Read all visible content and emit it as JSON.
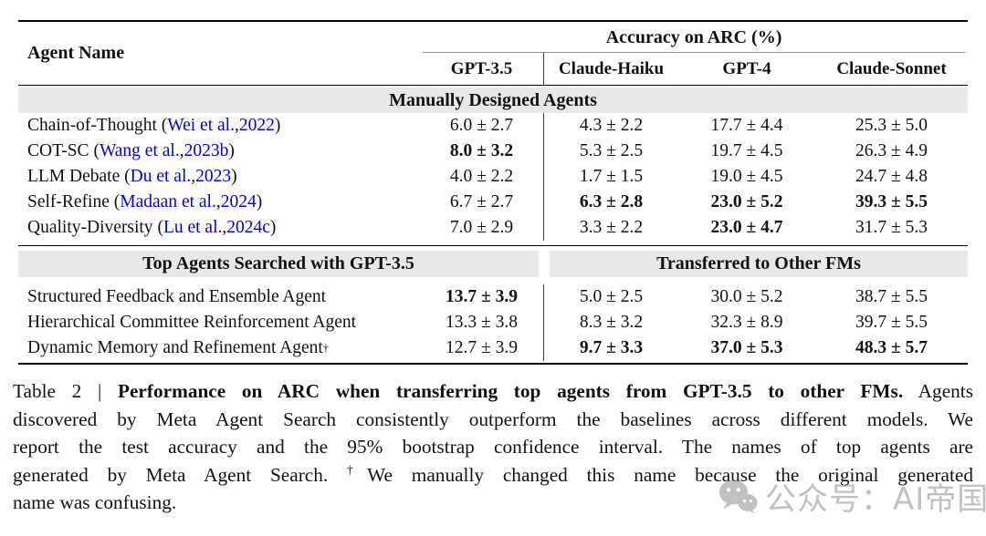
{
  "colors": {
    "link_blue": "#0000EE",
    "band_gray": "#E8E8E8",
    "rule_gray": "#8F8F8F",
    "watermark_gray": "#8F8F8F"
  },
  "table": {
    "header": {
      "agent_name": "Agent Name",
      "group_label": "Accuracy on ARC (%)",
      "models": [
        "GPT-3.5",
        "Claude-Haiku",
        "GPT-4",
        "Claude-Sonnet"
      ]
    },
    "sections": [
      {
        "bands": [
          "Manually Designed Agents"
        ],
        "rows": [
          {
            "name": "Chain-of-Thought",
            "cite": {
              "authors": "Wei et al.",
              "year": "2022"
            },
            "values": [
              "6.0 ± 2.7",
              "4.3 ± 2.2",
              "17.7 ± 4.4",
              "25.3 ± 5.0"
            ],
            "bold": [
              0,
              0,
              0,
              0
            ]
          },
          {
            "name": "COT-SC",
            "cite": {
              "authors": "Wang et al.",
              "year": "2023b"
            },
            "values": [
              "8.0 ± 3.2",
              "5.3 ± 2.5",
              "19.7 ± 4.5",
              "26.3 ± 4.9"
            ],
            "bold": [
              1,
              0,
              0,
              0
            ]
          },
          {
            "name": "LLM Debate",
            "cite": {
              "authors": "Du et al.",
              "year": "2023"
            },
            "values": [
              "4.0 ± 2.2",
              "1.7 ± 1.5",
              "19.0 ± 4.5",
              "24.7 ± 4.8"
            ],
            "bold": [
              0,
              0,
              0,
              0
            ]
          },
          {
            "name": "Self-Refine",
            "cite": {
              "authors": "Madaan et al.",
              "year": "2024"
            },
            "values": [
              "6.7 ± 2.7",
              "6.3 ± 2.8",
              "23.0 ± 5.2",
              "39.3 ± 5.5"
            ],
            "bold": [
              0,
              1,
              1,
              1
            ]
          },
          {
            "name": "Quality-Diversity",
            "cite": {
              "authors": "Lu et al.",
              "year": "2024c"
            },
            "values": [
              "7.0 ± 2.9",
              "3.3 ± 2.2",
              "23.0 ± 4.7",
              "31.7 ± 5.3"
            ],
            "bold": [
              0,
              0,
              1,
              0
            ]
          }
        ]
      },
      {
        "bands": [
          "Top Agents Searched with GPT-3.5",
          "Transferred to Other FMs"
        ],
        "rows": [
          {
            "name": "Structured Feedback and Ensemble Agent",
            "values": [
              "13.7 ± 3.9",
              "5.0 ± 2.5",
              "30.0 ± 5.2",
              "38.7 ± 5.5"
            ],
            "bold": [
              1,
              0,
              0,
              0
            ]
          },
          {
            "name": "Hierarchical Committee Reinforcement Agent",
            "values": [
              "13.3 ± 3.8",
              "8.3 ± 3.2",
              "32.3 ± 8.9",
              "39.7 ± 5.5"
            ],
            "bold": [
              0,
              0,
              0,
              0
            ]
          },
          {
            "name": "Dynamic Memory and Refinement Agent",
            "dagger": "†",
            "values": [
              "12.7 ± 3.9",
              "9.7 ± 3.3",
              "37.0 ± 5.3",
              "48.3 ± 5.7"
            ],
            "bold": [
              0,
              1,
              1,
              1
            ]
          }
        ]
      }
    ]
  },
  "caption": {
    "lines": [
      [
        {
          "t": "Table 2 | "
        },
        {
          "t": "Performance on ARC when transferring top agents from GPT-3.5 to other FMs.",
          "b": 1
        },
        {
          "t": " Agents"
        }
      ],
      [
        {
          "t": "discovered by Meta Agent Search consistently outperform the baselines across different models. We"
        }
      ],
      [
        {
          "t": "report the test accuracy and the 95% bootstrap confidence interval. The names of top agents are"
        }
      ],
      [
        {
          "t": "generated by Meta Agent Search. "
        },
        {
          "t": "†",
          "sup": 1
        },
        {
          "t": "We manually changed this name because the original generated"
        }
      ],
      [
        {
          "t": "name was confusing."
        }
      ]
    ]
  },
  "watermark": {
    "icon": "wechat-icon",
    "text": "公众号：AI帝国"
  }
}
